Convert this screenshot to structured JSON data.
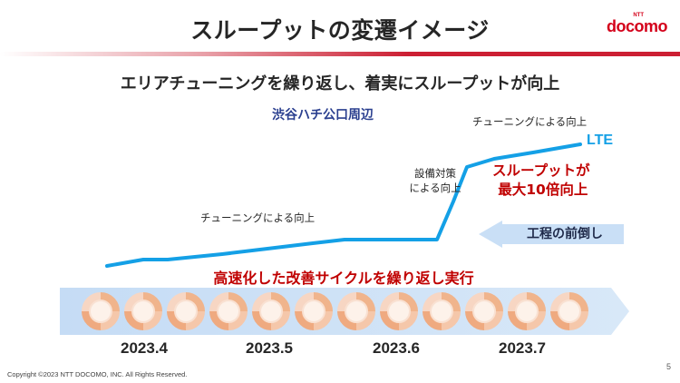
{
  "header": {
    "title": "スループットの変遷イメージ",
    "logo_ntt": "NTT",
    "logo_name": "docomo"
  },
  "subtitle": "エリアチューニングを繰り返し、着実にスループットが向上",
  "location": "渋谷ハチ公口周辺",
  "annotations": {
    "tuning_left": "チューニングによる向上",
    "measures_line1": "設備対策",
    "measures_line2": "による向上",
    "tuning_top": "チューニングによる向上",
    "series_label": "LTE"
  },
  "callouts": {
    "gain_line1": "スループットが",
    "gain_line2": "最大10倍向上",
    "schedule": "工程の前倒し"
  },
  "repeat_label": "高速化した改善サイクルを繰り返し実行",
  "months": [
    "2023.4",
    "2023.5",
    "2023.6",
    "2023.7"
  ],
  "footer": {
    "copyright": "Copyright ©2023 NTT DOCOMO, INC. All Rights Reserved.",
    "page": "5"
  },
  "colors": {
    "accent_red": "#c00000",
    "line_blue": "#14a0e6",
    "location_navy": "#2a3f8f",
    "band_blue": "#c9dff6"
  }
}
